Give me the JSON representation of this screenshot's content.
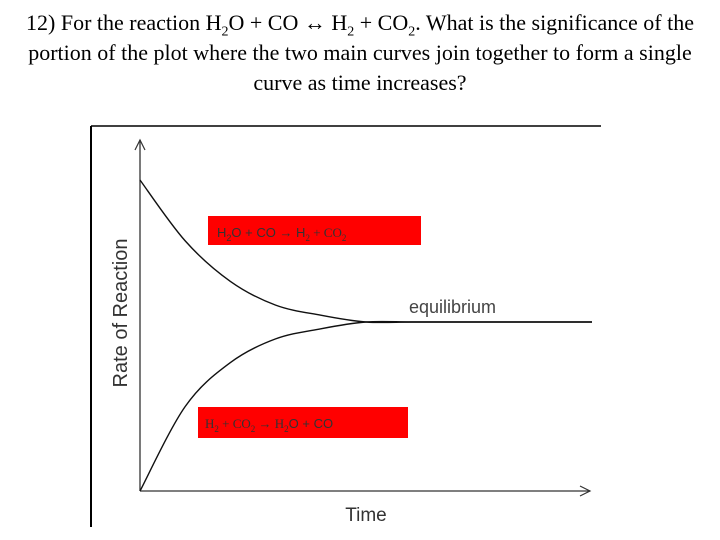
{
  "slide": {
    "question": {
      "num": "12)",
      "t1": "For the reaction H",
      "s1": "2",
      "t2": "O + CO  ↔ H",
      "s2": "2",
      "t3": "  + CO",
      "s3": "2",
      "t4": ". What is the significance of the portion of the plot where the two main curves join together to form a single curve as time increases?"
    }
  },
  "chart_data": {
    "type": "line",
    "xlabel": "Time",
    "ylabel": "Rate of Reaction",
    "annotations": [
      "equilibrium",
      {
        "lead": "H",
        "s1": "2",
        "mid1": "O + CO → H",
        "s2": "2",
        "mid2": " + CO",
        "s3": "2",
        "tail": ""
      },
      {
        "lead": "H",
        "s1": "2",
        "mid1": "  +  CO",
        "s2": "2",
        "mid2": " → H",
        "s3": "2",
        "tail": "O + CO"
      }
    ],
    "series": [
      {
        "x": [
          0,
          1,
          2,
          3,
          4,
          5,
          6,
          7,
          8,
          9,
          10
        ],
        "y": [
          0.92,
          0.74,
          0.62,
          0.55,
          0.52,
          0.5,
          0.5,
          0.5,
          0.5,
          0.5,
          0.5
        ]
      },
      {
        "x": [
          0,
          1,
          2,
          3,
          4,
          5,
          6,
          7,
          8,
          9,
          10
        ],
        "y": [
          0.0,
          0.25,
          0.38,
          0.45,
          0.48,
          0.5,
          0.5,
          0.5,
          0.5,
          0.5,
          0.5
        ]
      }
    ],
    "xlim": [
      0,
      10
    ],
    "ylim": [
      0,
      1
    ],
    "colors": {
      "curve": "#111111",
      "label_box": "#ff0000",
      "axis": "#333333"
    },
    "grid": false
  }
}
